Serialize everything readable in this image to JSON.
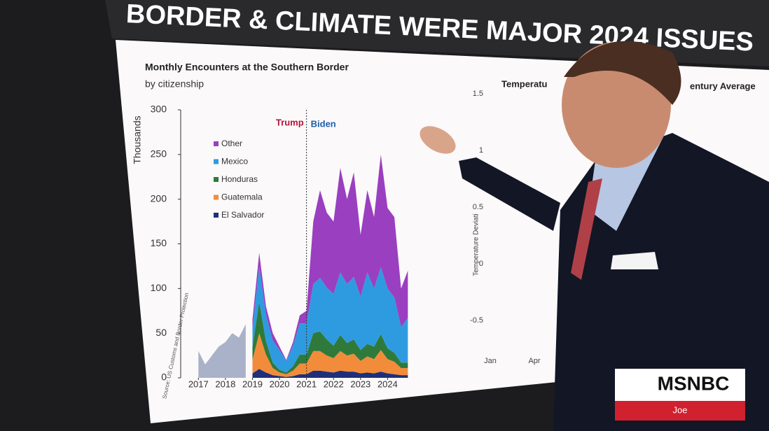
{
  "headline": "BORDER & CLIMATE WERE MAJOR 2024 ISSUES",
  "chart_data": {
    "type": "area",
    "title": "Monthly Encounters at the Southern Border",
    "subtitle": "by citizenship",
    "y_label": "Thousands",
    "source": "Source: US Customs and Border Protection",
    "stacked": true,
    "x": [
      2017.0,
      2017.25,
      2017.5,
      2017.75,
      2018.0,
      2018.25,
      2018.5,
      2018.75,
      2019.0,
      2019.25,
      2019.5,
      2019.75,
      2020.0,
      2020.25,
      2020.5,
      2020.75,
      2021.0,
      2021.25,
      2021.5,
      2021.75,
      2022.0,
      2022.25,
      2022.5,
      2022.75,
      2023.0,
      2023.25,
      2023.5,
      2023.75,
      2024.0,
      2024.25,
      2024.5,
      2024.75
    ],
    "series": [
      {
        "color": "#a9b2c8",
        "values": [
          30,
          15,
          25,
          35,
          40,
          50,
          45,
          60,
          null,
          null,
          null,
          null,
          null,
          null,
          null,
          null,
          null,
          null,
          null,
          null,
          null,
          null,
          null,
          null,
          null,
          null,
          null,
          null,
          null,
          null,
          null,
          null
        ]
      },
      {
        "name": "El Salvador",
        "color": "#1f2f7a",
        "values": [
          null,
          null,
          null,
          null,
          null,
          null,
          null,
          null,
          5,
          10,
          6,
          3,
          2,
          1,
          2,
          4,
          4,
          8,
          8,
          7,
          6,
          8,
          7,
          7,
          5,
          6,
          5,
          7,
          5,
          4,
          3,
          3
        ]
      },
      {
        "name": "Guatemala",
        "color": "#f28c3a",
        "values": [
          null,
          null,
          null,
          null,
          null,
          null,
          null,
          null,
          15,
          40,
          20,
          8,
          4,
          3,
          6,
          12,
          12,
          22,
          22,
          18,
          16,
          22,
          18,
          20,
          14,
          18,
          16,
          24,
          16,
          14,
          8,
          8
        ]
      },
      {
        "name": "Honduras",
        "color": "#2f7a3a",
        "values": [
          null,
          null,
          null,
          null,
          null,
          null,
          null,
          null,
          15,
          35,
          15,
          6,
          3,
          2,
          5,
          10,
          10,
          20,
          22,
          18,
          14,
          18,
          14,
          16,
          12,
          14,
          14,
          18,
          12,
          10,
          6,
          6
        ]
      },
      {
        "name": "Mexico",
        "color": "#2e9be0",
        "values": [
          null,
          null,
          null,
          null,
          null,
          null,
          null,
          null,
          20,
          40,
          30,
          25,
          22,
          13,
          23,
          35,
          35,
          55,
          60,
          58,
          58,
          70,
          66,
          70,
          60,
          80,
          65,
          75,
          67,
          62,
          40,
          50
        ]
      },
      {
        "name": "Other",
        "color": "#9a3fc0",
        "values": [
          null,
          null,
          null,
          null,
          null,
          null,
          null,
          null,
          10,
          15,
          9,
          8,
          4,
          1,
          4,
          9,
          14,
          70,
          98,
          84,
          81,
          117,
          95,
          117,
          69,
          92,
          80,
          126,
          90,
          90,
          43,
          53
        ]
      }
    ],
    "xlim": [
      2016.5,
      2025.0
    ],
    "xticks": [
      2017,
      2018,
      2019,
      2020,
      2021,
      2022,
      2023,
      2024
    ],
    "ylim": [
      0,
      300
    ],
    "yticks": [
      0,
      50,
      100,
      150,
      200,
      250,
      300
    ],
    "divider_x": 2021.0,
    "annotations": [
      {
        "text": "Trump",
        "color": "#b5123a"
      },
      {
        "text": "Biden",
        "color": "#1f5fa8"
      }
    ]
  },
  "right_panel": {
    "title_left": "Temperatu",
    "title_right": "entury Average",
    "y_label": "Temperature Deviati",
    "yticks": [
      "1.5",
      "1",
      "0.5",
      "0",
      "-0.5"
    ],
    "xticks": [
      "Jan",
      "Apr"
    ]
  },
  "logo": {
    "network": "MSNBC",
    "show": "Joe"
  }
}
